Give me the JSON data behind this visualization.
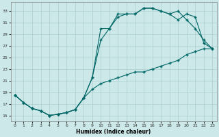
{
  "xlabel": "Humidex (Indice chaleur)",
  "bg_color": "#cce8e8",
  "line_color": "#006666",
  "grid_color": "#aacfcf",
  "xlim": [
    -0.5,
    23.5
  ],
  "ylim": [
    14,
    34.5
  ],
  "yticks": [
    15,
    17,
    19,
    21,
    23,
    25,
    27,
    29,
    31,
    33
  ],
  "xticks": [
    0,
    1,
    2,
    3,
    4,
    5,
    6,
    7,
    8,
    9,
    10,
    11,
    12,
    13,
    14,
    15,
    16,
    17,
    18,
    19,
    20,
    21,
    22,
    23
  ],
  "line1_x": [
    0,
    1,
    2,
    3,
    4,
    5,
    6,
    7,
    8,
    9,
    10,
    11,
    12,
    13,
    14,
    15,
    16,
    17,
    18,
    19,
    20,
    21,
    22,
    23
  ],
  "line1_y": [
    18.5,
    17.2,
    16.2,
    15.8,
    15.0,
    15.2,
    15.5,
    16.0,
    18.0,
    19.5,
    20.5,
    21.0,
    21.5,
    22.0,
    22.5,
    22.5,
    23.0,
    23.5,
    24.0,
    24.5,
    25.5,
    26.0,
    26.5,
    26.5
  ],
  "line2_x": [
    0,
    1,
    2,
    3,
    4,
    5,
    6,
    7,
    8,
    9,
    10,
    11,
    12,
    13,
    14,
    15,
    16,
    17,
    18,
    19,
    20,
    21,
    22,
    23
  ],
  "line2_y": [
    18.5,
    17.2,
    16.2,
    15.8,
    15.0,
    15.2,
    15.5,
    16.0,
    18.0,
    21.5,
    28.0,
    30.0,
    32.0,
    32.5,
    32.5,
    33.5,
    33.5,
    33.0,
    32.5,
    33.0,
    31.5,
    30.0,
    28.0,
    26.5
  ],
  "line3_x": [
    0,
    1,
    2,
    3,
    4,
    5,
    6,
    7,
    8,
    9,
    10,
    11,
    12,
    13,
    14,
    15,
    16,
    17,
    18,
    19,
    20,
    21,
    22,
    23
  ],
  "line3_y": [
    18.5,
    17.2,
    16.2,
    15.8,
    15.0,
    15.2,
    15.5,
    16.0,
    18.0,
    21.5,
    30.0,
    30.0,
    32.5,
    32.5,
    32.5,
    33.5,
    33.5,
    33.0,
    32.5,
    31.5,
    32.5,
    32.0,
    27.5,
    26.5
  ]
}
